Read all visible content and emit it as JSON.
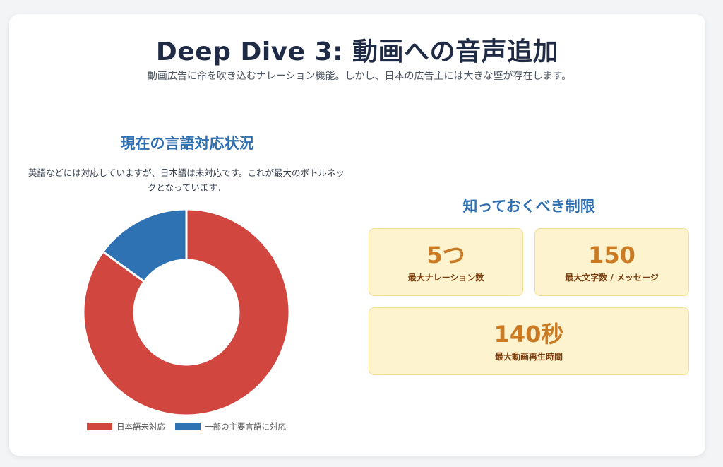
{
  "header": {
    "title": "Deep Dive 3: 動画への音声追加",
    "subtitle": "動画広告に命を吹き込むナレーション機能。しかし、日本の広告主には大きな壁が存在します。"
  },
  "language_section": {
    "heading": "現在の言語対応状況",
    "description": "英語などには対応していますが、日本語は未対応です。これが最大のボトルネックとなっています。"
  },
  "chart_data": {
    "type": "pie",
    "donut": true,
    "labels": [
      "日本語未対応",
      "一部の主要言語に対応"
    ],
    "values": [
      85,
      15
    ],
    "colors": [
      "#d1463f",
      "#2f72b3"
    ],
    "legend_position": "bottom"
  },
  "limits_section": {
    "heading": "知っておくべき制限",
    "stats": [
      {
        "value": "5つ",
        "label": "最大ナレーション数"
      },
      {
        "value": "150",
        "label": "最大文字数 / メッセージ"
      },
      {
        "value": "140秒",
        "label": "最大動画再生時間"
      }
    ]
  }
}
